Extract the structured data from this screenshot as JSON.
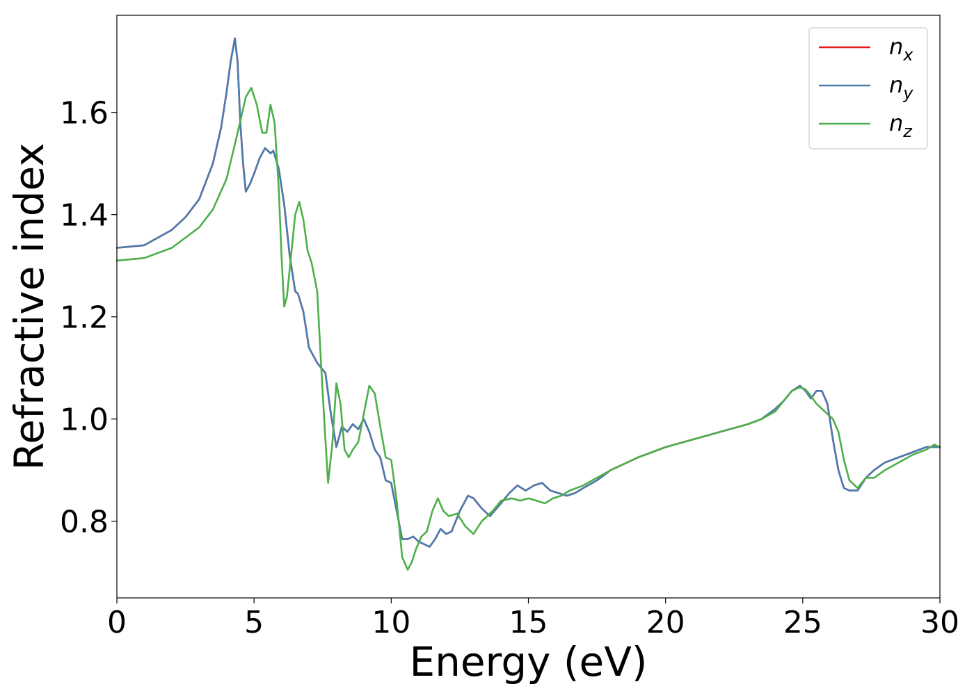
{
  "chart_data": {
    "type": "line",
    "title": "",
    "xlabel": "Energy (eV)",
    "ylabel": "Refractive index",
    "xlim": [
      0,
      30
    ],
    "ylim": [
      0.65,
      1.79
    ],
    "xticks": [
      0,
      5,
      10,
      15,
      20,
      25,
      30
    ],
    "xtick_labels": [
      "0",
      "5",
      "10",
      "15",
      "20",
      "25",
      "30"
    ],
    "yticks": [
      0.8,
      1.0,
      1.2,
      1.4,
      1.6
    ],
    "ytick_labels": [
      "0.8",
      "1.0",
      "1.2",
      "1.4",
      "1.6"
    ],
    "grid": false,
    "legend_position": "top-right",
    "series": [
      {
        "name": "n",
        "subscript": "x",
        "color": "#e41a1c",
        "x": [
          0,
          1,
          2,
          2.5,
          3,
          3.5,
          3.8,
          4.0,
          4.15,
          4.3,
          4.4,
          4.5,
          4.6,
          4.7,
          4.85,
          5.0,
          5.2,
          5.4,
          5.6,
          5.7,
          5.9,
          6.1,
          6.3,
          6.5,
          6.6,
          6.8,
          7.0,
          7.3,
          7.6,
          7.8,
          8.0,
          8.2,
          8.4,
          8.6,
          8.8,
          9.0,
          9.2,
          9.4,
          9.6,
          9.8,
          10.0,
          10.2,
          10.4,
          10.6,
          10.8,
          11.0,
          11.2,
          11.4,
          11.6,
          11.8,
          12.0,
          12.2,
          12.5,
          12.8,
          13.0,
          13.3,
          13.6,
          14.0,
          14.3,
          14.6,
          14.9,
          15.2,
          15.5,
          15.8,
          16.1,
          16.4,
          16.7,
          17.0,
          17.5,
          18.0,
          19.0,
          20.0,
          21.0,
          22.0,
          23.0,
          23.5,
          24.0,
          24.3,
          24.6,
          24.9,
          25.1,
          25.3,
          25.5,
          25.7,
          25.9,
          26.1,
          26.3,
          26.5,
          26.7,
          27.0,
          27.3,
          27.6,
          28.0,
          28.5,
          29.0,
          29.5,
          29.8,
          30.0
        ],
        "y": [
          1.335,
          1.34,
          1.37,
          1.395,
          1.43,
          1.5,
          1.57,
          1.64,
          1.7,
          1.745,
          1.7,
          1.58,
          1.5,
          1.445,
          1.46,
          1.48,
          1.51,
          1.53,
          1.52,
          1.525,
          1.49,
          1.42,
          1.32,
          1.25,
          1.245,
          1.21,
          1.14,
          1.11,
          1.09,
          1.01,
          0.945,
          0.985,
          0.975,
          0.99,
          0.98,
          1.0,
          0.975,
          0.94,
          0.925,
          0.88,
          0.875,
          0.82,
          0.765,
          0.765,
          0.77,
          0.76,
          0.755,
          0.75,
          0.765,
          0.785,
          0.775,
          0.78,
          0.82,
          0.85,
          0.845,
          0.825,
          0.81,
          0.835,
          0.855,
          0.87,
          0.86,
          0.87,
          0.875,
          0.86,
          0.855,
          0.85,
          0.855,
          0.865,
          0.88,
          0.9,
          0.925,
          0.945,
          0.96,
          0.975,
          0.99,
          1.0,
          1.02,
          1.035,
          1.055,
          1.065,
          1.055,
          1.04,
          1.055,
          1.055,
          1.03,
          0.96,
          0.9,
          0.865,
          0.86,
          0.86,
          0.885,
          0.9,
          0.915,
          0.925,
          0.935,
          0.945,
          0.945,
          0.945
        ]
      },
      {
        "name": "n",
        "subscript": "y",
        "color": "#4a7bb0",
        "x": [
          0,
          1,
          2,
          2.5,
          3,
          3.5,
          3.8,
          4.0,
          4.15,
          4.3,
          4.4,
          4.5,
          4.6,
          4.7,
          4.85,
          5.0,
          5.2,
          5.4,
          5.6,
          5.7,
          5.9,
          6.1,
          6.3,
          6.5,
          6.6,
          6.8,
          7.0,
          7.3,
          7.6,
          7.8,
          8.0,
          8.2,
          8.4,
          8.6,
          8.8,
          9.0,
          9.2,
          9.4,
          9.6,
          9.8,
          10.0,
          10.2,
          10.4,
          10.6,
          10.8,
          11.0,
          11.2,
          11.4,
          11.6,
          11.8,
          12.0,
          12.2,
          12.5,
          12.8,
          13.0,
          13.3,
          13.6,
          14.0,
          14.3,
          14.6,
          14.9,
          15.2,
          15.5,
          15.8,
          16.1,
          16.4,
          16.7,
          17.0,
          17.5,
          18.0,
          19.0,
          20.0,
          21.0,
          22.0,
          23.0,
          23.5,
          24.0,
          24.3,
          24.6,
          24.9,
          25.1,
          25.3,
          25.5,
          25.7,
          25.9,
          26.1,
          26.3,
          26.5,
          26.7,
          27.0,
          27.3,
          27.6,
          28.0,
          28.5,
          29.0,
          29.5,
          29.8,
          30.0
        ],
        "y": [
          1.335,
          1.34,
          1.37,
          1.395,
          1.43,
          1.5,
          1.57,
          1.64,
          1.7,
          1.745,
          1.7,
          1.58,
          1.5,
          1.445,
          1.46,
          1.48,
          1.51,
          1.53,
          1.52,
          1.525,
          1.49,
          1.42,
          1.32,
          1.25,
          1.245,
          1.21,
          1.14,
          1.11,
          1.09,
          1.01,
          0.945,
          0.985,
          0.975,
          0.99,
          0.98,
          1.0,
          0.975,
          0.94,
          0.925,
          0.88,
          0.875,
          0.82,
          0.765,
          0.765,
          0.77,
          0.76,
          0.755,
          0.75,
          0.765,
          0.785,
          0.775,
          0.78,
          0.82,
          0.85,
          0.845,
          0.825,
          0.81,
          0.835,
          0.855,
          0.87,
          0.86,
          0.87,
          0.875,
          0.86,
          0.855,
          0.85,
          0.855,
          0.865,
          0.88,
          0.9,
          0.925,
          0.945,
          0.96,
          0.975,
          0.99,
          1.0,
          1.02,
          1.035,
          1.055,
          1.065,
          1.055,
          1.04,
          1.055,
          1.055,
          1.03,
          0.96,
          0.9,
          0.865,
          0.86,
          0.86,
          0.885,
          0.9,
          0.915,
          0.925,
          0.935,
          0.945,
          0.945,
          0.945
        ]
      },
      {
        "name": "n",
        "subscript": "z",
        "color": "#4daf4a",
        "x": [
          0,
          1,
          2,
          3,
          3.5,
          4.0,
          4.4,
          4.7,
          4.9,
          5.1,
          5.3,
          5.45,
          5.6,
          5.75,
          5.9,
          6.0,
          6.1,
          6.2,
          6.35,
          6.5,
          6.65,
          6.8,
          6.95,
          7.1,
          7.3,
          7.45,
          7.6,
          7.7,
          7.85,
          8.0,
          8.15,
          8.3,
          8.45,
          8.6,
          8.8,
          9.0,
          9.2,
          9.4,
          9.6,
          9.8,
          10.0,
          10.2,
          10.4,
          10.6,
          10.75,
          10.9,
          11.1,
          11.3,
          11.5,
          11.7,
          11.9,
          12.1,
          12.4,
          12.7,
          13.0,
          13.3,
          13.7,
          14.0,
          14.4,
          14.7,
          15.0,
          15.3,
          15.6,
          15.9,
          16.2,
          16.5,
          17.0,
          17.5,
          18.0,
          19.0,
          20.0,
          21.0,
          22.0,
          23.0,
          23.5,
          24.0,
          24.3,
          24.6,
          24.9,
          25.1,
          25.3,
          25.5,
          25.7,
          25.9,
          26.1,
          26.3,
          26.5,
          26.7,
          27.0,
          27.3,
          27.6,
          28.0,
          28.5,
          29.0,
          29.5,
          29.8,
          30.0
        ],
        "y": [
          1.31,
          1.315,
          1.335,
          1.375,
          1.41,
          1.47,
          1.56,
          1.63,
          1.648,
          1.615,
          1.56,
          1.56,
          1.615,
          1.58,
          1.45,
          1.32,
          1.22,
          1.24,
          1.32,
          1.4,
          1.425,
          1.39,
          1.33,
          1.305,
          1.25,
          1.1,
          0.96,
          0.875,
          0.95,
          1.07,
          1.03,
          0.94,
          0.925,
          0.94,
          0.955,
          1.01,
          1.065,
          1.05,
          0.985,
          0.925,
          0.92,
          0.84,
          0.73,
          0.705,
          0.72,
          0.745,
          0.77,
          0.78,
          0.82,
          0.845,
          0.82,
          0.81,
          0.815,
          0.79,
          0.775,
          0.8,
          0.82,
          0.84,
          0.845,
          0.84,
          0.845,
          0.84,
          0.835,
          0.845,
          0.85,
          0.86,
          0.87,
          0.885,
          0.9,
          0.925,
          0.945,
          0.96,
          0.975,
          0.99,
          1.0,
          1.015,
          1.035,
          1.055,
          1.062,
          1.058,
          1.045,
          1.03,
          1.02,
          1.01,
          1.0,
          0.975,
          0.92,
          0.88,
          0.865,
          0.885,
          0.885,
          0.9,
          0.915,
          0.93,
          0.94,
          0.95,
          0.945
        ]
      }
    ]
  }
}
